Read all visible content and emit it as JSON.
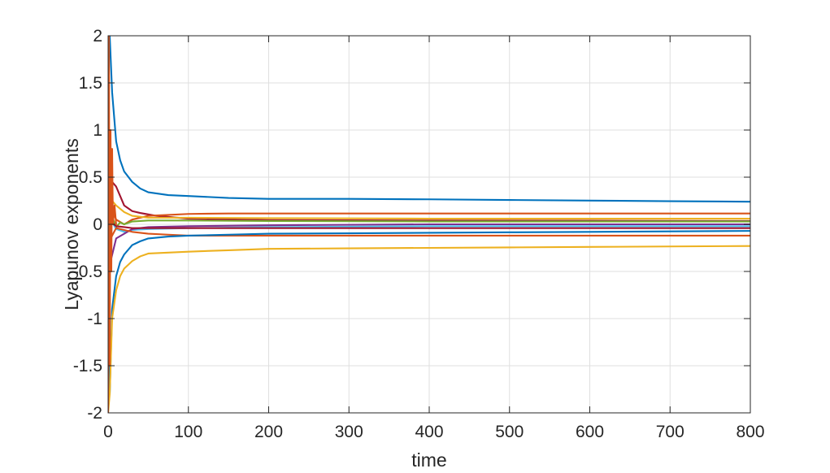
{
  "chart_data": {
    "type": "line",
    "title": "",
    "xlabel": "time",
    "ylabel": "Lyapunov exponents",
    "xlim": [
      0,
      800
    ],
    "ylim": [
      -2,
      2
    ],
    "grid": true,
    "x_ticks": [
      "0",
      "100",
      "200",
      "300",
      "400",
      "500",
      "600",
      "700",
      "800"
    ],
    "y_ticks": [
      "2",
      "1.5",
      "1",
      "0.5",
      "0",
      "-0.5",
      "-1",
      "-1.5",
      "-2"
    ],
    "series": [
      {
        "color": "#0072BD",
        "x": [
          0,
          2,
          5,
          10,
          15,
          20,
          30,
          40,
          50,
          75,
          100,
          150,
          200,
          300,
          400,
          500,
          600,
          700,
          800
        ],
        "y": [
          2,
          2,
          1.4,
          0.88,
          0.68,
          0.56,
          0.45,
          0.38,
          0.34,
          0.31,
          0.3,
          0.28,
          0.27,
          0.27,
          0.265,
          0.258,
          0.252,
          0.245,
          0.24
        ]
      },
      {
        "color": "#A2142F",
        "x": [
          0,
          3,
          5,
          10,
          15,
          20,
          30,
          40,
          60,
          100,
          200,
          400,
          600,
          800
        ],
        "y": [
          0.2,
          0.55,
          0.45,
          0.4,
          0.3,
          0.2,
          0.14,
          0.12,
          0.09,
          0.06,
          0.045,
          0.04,
          0.038,
          0.035
        ]
      },
      {
        "color": "#D95319",
        "x": [
          0,
          5,
          10,
          20,
          30,
          50,
          75,
          100,
          150,
          200,
          400,
          600,
          800
        ],
        "y": [
          0.6,
          0.15,
          0.05,
          0.0,
          0.05,
          0.09,
          0.1,
          0.11,
          0.115,
          0.115,
          0.115,
          0.115,
          0.115
        ]
      },
      {
        "color": "#EDB120",
        "x": [
          0,
          5,
          10,
          20,
          30,
          50,
          100,
          200,
          400,
          600,
          800
        ],
        "y": [
          0.4,
          0.25,
          0.2,
          0.13,
          0.09,
          0.07,
          0.07,
          0.065,
          0.06,
          0.06,
          0.06
        ]
      },
      {
        "color": "#77AC30",
        "x": [
          0,
          5,
          10,
          15,
          20,
          30,
          50,
          100,
          200,
          400,
          600,
          800
        ],
        "y": [
          -0.15,
          0.08,
          -0.03,
          0.02,
          0.0,
          0.03,
          0.04,
          0.04,
          0.035,
          0.03,
          0.03,
          0.03
        ]
      },
      {
        "color": "#4DBEEE",
        "x": [
          0,
          10,
          20,
          30,
          50,
          100,
          200,
          400,
          600,
          800
        ],
        "y": [
          0.1,
          -0.05,
          -0.08,
          -0.06,
          -0.05,
          -0.04,
          -0.03,
          -0.02,
          -0.02,
          -0.02
        ]
      },
      {
        "color": "#7E2F8E",
        "x": [
          0,
          10,
          20,
          30,
          50,
          100,
          200,
          400,
          600,
          800
        ],
        "y": [
          -0.5,
          -0.15,
          -0.1,
          -0.05,
          -0.03,
          -0.02,
          -0.01,
          0.0,
          0.0,
          0.0
        ]
      },
      {
        "color": "#A2142F",
        "x": [
          0,
          10,
          20,
          30,
          50,
          100,
          200,
          400,
          600,
          800
        ],
        "y": [
          0.05,
          -0.02,
          -0.03,
          -0.04,
          -0.04,
          -0.04,
          -0.04,
          -0.04,
          -0.04,
          -0.04
        ]
      },
      {
        "color": "#D95319",
        "x": [
          0,
          10,
          20,
          30,
          50,
          75,
          100,
          150,
          200,
          300,
          400,
          600,
          800
        ],
        "y": [
          -0.2,
          -0.04,
          -0.06,
          -0.08,
          -0.1,
          -0.11,
          -0.12,
          -0.12,
          -0.12,
          -0.12,
          -0.12,
          -0.12,
          -0.12
        ]
      },
      {
        "color": "#0072BD",
        "x": [
          0,
          2,
          5,
          10,
          15,
          20,
          30,
          40,
          50,
          75,
          100,
          150,
          200,
          300,
          400,
          500,
          600,
          700,
          800
        ],
        "y": [
          -0.2,
          -1.8,
          -0.9,
          -0.55,
          -0.4,
          -0.32,
          -0.22,
          -0.18,
          -0.15,
          -0.13,
          -0.12,
          -0.11,
          -0.1,
          -0.095,
          -0.09,
          -0.085,
          -0.08,
          -0.075,
          -0.07
        ]
      },
      {
        "color": "#EDB120",
        "x": [
          0,
          2,
          5,
          10,
          15,
          20,
          30,
          40,
          50,
          75,
          100,
          150,
          200,
          300,
          400,
          500,
          600,
          700,
          800
        ],
        "y": [
          -2,
          -1.8,
          -1.0,
          -0.7,
          -0.55,
          -0.47,
          -0.39,
          -0.34,
          -0.31,
          -0.3,
          -0.29,
          -0.275,
          -0.26,
          -0.255,
          -0.25,
          -0.245,
          -0.24,
          -0.235,
          -0.23
        ]
      },
      {
        "color": "#D95319",
        "x": [
          0,
          1,
          2,
          3,
          4,
          5,
          6,
          8,
          10
        ],
        "y": [
          -2,
          2,
          -1.5,
          1.0,
          -0.5,
          0.8,
          0.0,
          0.2,
          0.0
        ]
      }
    ]
  }
}
